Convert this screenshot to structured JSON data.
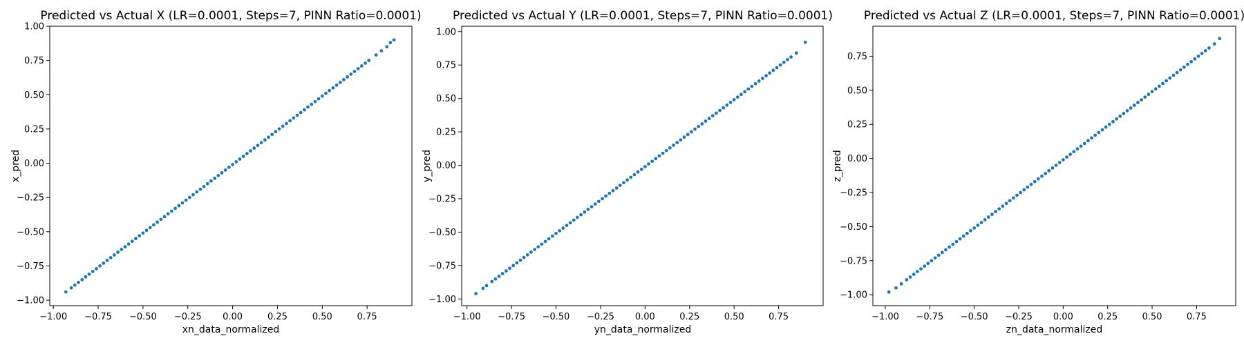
{
  "chart_data": [
    {
      "type": "scatter",
      "title": "Predicted vs Actual X (LR=0.0001, Steps=7, PINN Ratio=0.0001)",
      "xlabel": "xn_data_normalized",
      "ylabel": "x_pred",
      "xlim": [
        -1.02,
        1.0
      ],
      "ylim": [
        -1.04,
        1.0
      ],
      "xticks": [
        -1.0,
        -0.75,
        -0.5,
        -0.25,
        0.0,
        0.25,
        0.5,
        0.75
      ],
      "xtick_labels": [
        "−1.00",
        "−0.75",
        "−0.50",
        "−0.25",
        "0.00",
        "0.25",
        "0.50",
        "0.75"
      ],
      "yticks": [
        -1.0,
        -0.75,
        -0.5,
        -0.25,
        0.0,
        0.25,
        0.5,
        0.75,
        1.0
      ],
      "ytick_labels": [
        "−1.00",
        "−0.75",
        "−0.50",
        "−0.25",
        "0.00",
        "0.25",
        "0.50",
        "0.75",
        "1.00"
      ],
      "grid": false,
      "color": "#1f77b4",
      "points": {
        "x": [
          -0.93,
          -0.9,
          -0.88,
          -0.86,
          -0.84,
          -0.82,
          -0.8,
          -0.78,
          -0.76,
          -0.74,
          -0.72,
          -0.7,
          -0.68,
          -0.66,
          -0.64,
          -0.62,
          -0.6,
          -0.58,
          -0.56,
          -0.54,
          -0.52,
          -0.5,
          -0.48,
          -0.46,
          -0.44,
          -0.42,
          -0.4,
          -0.38,
          -0.36,
          -0.34,
          -0.32,
          -0.3,
          -0.28,
          -0.26,
          -0.24,
          -0.22,
          -0.2,
          -0.18,
          -0.16,
          -0.14,
          -0.12,
          -0.1,
          -0.08,
          -0.06,
          -0.04,
          -0.02,
          0.0,
          0.02,
          0.04,
          0.06,
          0.08,
          0.1,
          0.12,
          0.14,
          0.16,
          0.18,
          0.2,
          0.22,
          0.24,
          0.26,
          0.28,
          0.3,
          0.32,
          0.34,
          0.36,
          0.38,
          0.4,
          0.42,
          0.44,
          0.46,
          0.48,
          0.5,
          0.52,
          0.54,
          0.56,
          0.58,
          0.6,
          0.62,
          0.64,
          0.66,
          0.68,
          0.7,
          0.72,
          0.74,
          0.76,
          0.8,
          0.83,
          0.86,
          0.88,
          0.9
        ],
        "y": [
          -0.94,
          -0.91,
          -0.89,
          -0.87,
          -0.85,
          -0.83,
          -0.81,
          -0.79,
          -0.77,
          -0.75,
          -0.73,
          -0.71,
          -0.69,
          -0.67,
          -0.65,
          -0.63,
          -0.61,
          -0.59,
          -0.57,
          -0.55,
          -0.53,
          -0.51,
          -0.49,
          -0.47,
          -0.45,
          -0.43,
          -0.41,
          -0.39,
          -0.37,
          -0.35,
          -0.33,
          -0.31,
          -0.29,
          -0.27,
          -0.25,
          -0.23,
          -0.21,
          -0.19,
          -0.17,
          -0.15,
          -0.13,
          -0.11,
          -0.09,
          -0.07,
          -0.05,
          -0.03,
          -0.01,
          0.01,
          0.03,
          0.05,
          0.07,
          0.09,
          0.11,
          0.13,
          0.15,
          0.17,
          0.19,
          0.21,
          0.23,
          0.25,
          0.27,
          0.29,
          0.31,
          0.33,
          0.35,
          0.37,
          0.39,
          0.41,
          0.43,
          0.45,
          0.47,
          0.49,
          0.51,
          0.53,
          0.55,
          0.57,
          0.59,
          0.61,
          0.63,
          0.65,
          0.67,
          0.69,
          0.71,
          0.73,
          0.75,
          0.79,
          0.82,
          0.85,
          0.88,
          0.9
        ]
      }
    },
    {
      "type": "scatter",
      "title": "Predicted vs Actual Y (LR=0.0001, Steps=7, PINN Ratio=0.0001)",
      "xlabel": "yn_data_normalized",
      "ylabel": "y_pred",
      "xlim": [
        -1.03,
        1.0
      ],
      "ylim": [
        -1.05,
        1.04
      ],
      "xticks": [
        -1.0,
        -0.75,
        -0.5,
        -0.25,
        0.0,
        0.25,
        0.5,
        0.75
      ],
      "xtick_labels": [
        "−1.00",
        "−0.75",
        "−0.50",
        "−0.25",
        "0.00",
        "0.25",
        "0.50",
        "0.75"
      ],
      "yticks": [
        -1.0,
        -0.75,
        -0.5,
        -0.25,
        0.0,
        0.25,
        0.5,
        0.75,
        1.0
      ],
      "ytick_labels": [
        "−1.00",
        "−0.75",
        "−0.50",
        "−0.25",
        "0.00",
        "0.25",
        "0.50",
        "0.75",
        "1.00"
      ],
      "grid": false,
      "color": "#1f77b4",
      "points": {
        "x": [
          -0.95,
          -0.91,
          -0.89,
          -0.86,
          -0.84,
          -0.82,
          -0.8,
          -0.78,
          -0.76,
          -0.74,
          -0.72,
          -0.7,
          -0.68,
          -0.66,
          -0.64,
          -0.62,
          -0.6,
          -0.58,
          -0.56,
          -0.54,
          -0.52,
          -0.5,
          -0.48,
          -0.46,
          -0.44,
          -0.42,
          -0.4,
          -0.38,
          -0.36,
          -0.34,
          -0.32,
          -0.3,
          -0.28,
          -0.26,
          -0.24,
          -0.22,
          -0.2,
          -0.18,
          -0.16,
          -0.14,
          -0.12,
          -0.1,
          -0.08,
          -0.06,
          -0.04,
          -0.02,
          0.0,
          0.02,
          0.04,
          0.06,
          0.08,
          0.1,
          0.12,
          0.14,
          0.16,
          0.18,
          0.2,
          0.22,
          0.24,
          0.26,
          0.28,
          0.3,
          0.32,
          0.34,
          0.36,
          0.38,
          0.4,
          0.42,
          0.44,
          0.46,
          0.48,
          0.5,
          0.52,
          0.54,
          0.56,
          0.58,
          0.6,
          0.62,
          0.64,
          0.66,
          0.68,
          0.7,
          0.72,
          0.74,
          0.76,
          0.78,
          0.8,
          0.82,
          0.85,
          0.9
        ],
        "y": [
          -0.96,
          -0.92,
          -0.9,
          -0.87,
          -0.85,
          -0.83,
          -0.81,
          -0.79,
          -0.77,
          -0.75,
          -0.73,
          -0.71,
          -0.69,
          -0.67,
          -0.65,
          -0.63,
          -0.61,
          -0.59,
          -0.57,
          -0.55,
          -0.53,
          -0.51,
          -0.49,
          -0.47,
          -0.45,
          -0.43,
          -0.41,
          -0.39,
          -0.37,
          -0.35,
          -0.33,
          -0.31,
          -0.29,
          -0.27,
          -0.25,
          -0.23,
          -0.21,
          -0.19,
          -0.17,
          -0.15,
          -0.13,
          -0.11,
          -0.09,
          -0.07,
          -0.05,
          -0.03,
          -0.01,
          0.01,
          0.03,
          0.05,
          0.07,
          0.09,
          0.11,
          0.13,
          0.15,
          0.17,
          0.19,
          0.21,
          0.23,
          0.25,
          0.27,
          0.29,
          0.31,
          0.33,
          0.35,
          0.37,
          0.39,
          0.41,
          0.43,
          0.45,
          0.47,
          0.49,
          0.51,
          0.53,
          0.55,
          0.57,
          0.59,
          0.61,
          0.63,
          0.65,
          0.67,
          0.69,
          0.71,
          0.73,
          0.75,
          0.77,
          0.79,
          0.81,
          0.84,
          0.92
        ]
      }
    },
    {
      "type": "scatter",
      "title": "Predicted vs Actual Z (LR=0.0001, Steps=7, PINN Ratio=0.0001)",
      "xlabel": "zn_data_normalized",
      "ylabel": "z_pred",
      "xlim": [
        -1.07,
        0.97
      ],
      "ylim": [
        -1.08,
        0.97
      ],
      "xticks": [
        -1.0,
        -0.75,
        -0.5,
        -0.25,
        0.0,
        0.25,
        0.5,
        0.75
      ],
      "xtick_labels": [
        "−1.00",
        "−0.75",
        "−0.50",
        "−0.25",
        "0.00",
        "0.25",
        "0.50",
        "0.75"
      ],
      "yticks": [
        -1.0,
        -0.75,
        -0.5,
        -0.25,
        0.0,
        0.25,
        0.5,
        0.75
      ],
      "ytick_labels": [
        "−1.00",
        "−0.75",
        "−0.50",
        "−0.25",
        "0.00",
        "0.25",
        "0.50",
        "0.75"
      ],
      "grid": false,
      "color": "#1f77b4",
      "points": {
        "x": [
          -0.98,
          -0.94,
          -0.91,
          -0.88,
          -0.86,
          -0.84,
          -0.82,
          -0.8,
          -0.78,
          -0.76,
          -0.74,
          -0.72,
          -0.7,
          -0.68,
          -0.66,
          -0.64,
          -0.62,
          -0.6,
          -0.58,
          -0.56,
          -0.54,
          -0.52,
          -0.5,
          -0.48,
          -0.46,
          -0.44,
          -0.42,
          -0.4,
          -0.38,
          -0.36,
          -0.34,
          -0.32,
          -0.3,
          -0.28,
          -0.26,
          -0.24,
          -0.22,
          -0.2,
          -0.18,
          -0.16,
          -0.14,
          -0.12,
          -0.1,
          -0.08,
          -0.06,
          -0.04,
          -0.02,
          0.0,
          0.02,
          0.04,
          0.06,
          0.08,
          0.1,
          0.12,
          0.14,
          0.16,
          0.18,
          0.2,
          0.22,
          0.24,
          0.26,
          0.28,
          0.3,
          0.32,
          0.34,
          0.36,
          0.38,
          0.4,
          0.42,
          0.44,
          0.46,
          0.48,
          0.5,
          0.52,
          0.54,
          0.56,
          0.58,
          0.6,
          0.62,
          0.64,
          0.66,
          0.68,
          0.7,
          0.72,
          0.74,
          0.76,
          0.78,
          0.8,
          0.82,
          0.85,
          0.88
        ],
        "y": [
          -0.98,
          -0.95,
          -0.92,
          -0.89,
          -0.87,
          -0.85,
          -0.83,
          -0.81,
          -0.79,
          -0.77,
          -0.75,
          -0.73,
          -0.71,
          -0.69,
          -0.67,
          -0.65,
          -0.63,
          -0.61,
          -0.59,
          -0.57,
          -0.55,
          -0.53,
          -0.51,
          -0.49,
          -0.47,
          -0.45,
          -0.43,
          -0.41,
          -0.39,
          -0.37,
          -0.35,
          -0.33,
          -0.31,
          -0.29,
          -0.27,
          -0.25,
          -0.23,
          -0.21,
          -0.19,
          -0.17,
          -0.15,
          -0.13,
          -0.11,
          -0.09,
          -0.07,
          -0.05,
          -0.03,
          -0.01,
          0.01,
          0.03,
          0.05,
          0.07,
          0.09,
          0.11,
          0.13,
          0.15,
          0.17,
          0.19,
          0.21,
          0.23,
          0.25,
          0.27,
          0.29,
          0.31,
          0.33,
          0.35,
          0.37,
          0.39,
          0.41,
          0.43,
          0.45,
          0.47,
          0.49,
          0.51,
          0.53,
          0.55,
          0.57,
          0.59,
          0.61,
          0.63,
          0.65,
          0.67,
          0.69,
          0.71,
          0.73,
          0.75,
          0.77,
          0.79,
          0.81,
          0.84,
          0.88
        ]
      }
    }
  ]
}
